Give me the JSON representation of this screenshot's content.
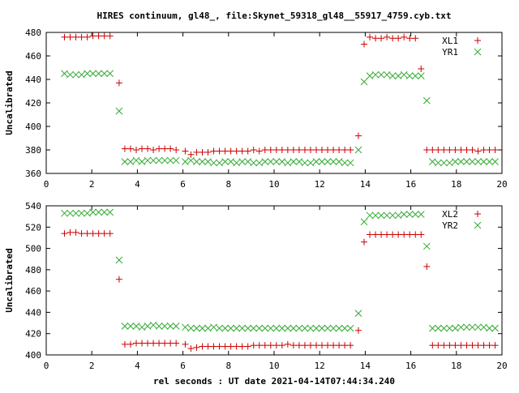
{
  "title": "HIRES continuum, gl48_, file:Skynet_59318_gl48__55917_4759.cyb.txt",
  "xlabel": "rel seconds : UT date 2021-04-14T07:44:34.240",
  "colors": {
    "xl": "#cc0000",
    "yr": "#33aa33",
    "axis": "#000000",
    "grid": "#808080"
  },
  "chart_data": [
    {
      "type": "scatter",
      "ylabel": "Uncalibrated",
      "xlim": [
        0,
        20
      ],
      "ylim": [
        360,
        480
      ],
      "xticks": [
        0,
        2,
        4,
        6,
        8,
        10,
        12,
        14,
        16,
        18,
        20
      ],
      "yticks": [
        360,
        380,
        400,
        420,
        440,
        460,
        480
      ],
      "legend_position": "top-right",
      "series": [
        {
          "name": "XL1",
          "marker": "plus",
          "color": "#cc0000",
          "x": [
            0.8,
            1.05,
            1.3,
            1.55,
            1.8,
            2.05,
            2.3,
            2.55,
            2.8,
            3.2,
            3.45,
            3.7,
            3.95,
            4.2,
            4.45,
            4.7,
            4.95,
            5.2,
            5.45,
            5.7,
            6.1,
            6.35,
            6.6,
            6.85,
            7.1,
            7.35,
            7.6,
            7.85,
            8.1,
            8.35,
            8.6,
            8.85,
            9.1,
            9.35,
            9.6,
            9.85,
            10.1,
            10.35,
            10.6,
            10.85,
            11.1,
            11.35,
            11.6,
            11.85,
            12.1,
            12.35,
            12.6,
            12.85,
            13.1,
            13.35,
            13.7,
            13.95,
            14.2,
            14.45,
            14.7,
            14.95,
            15.2,
            15.45,
            15.7,
            15.95,
            16.2,
            16.45,
            16.7,
            16.95,
            17.2,
            17.45,
            17.7,
            17.95,
            18.2,
            18.45,
            18.7,
            18.95,
            19.2,
            19.45,
            19.7
          ],
          "y": [
            476,
            476,
            476,
            476,
            476,
            477,
            477,
            477,
            477,
            437,
            381,
            381,
            380,
            381,
            381,
            380,
            381,
            381,
            381,
            380,
            379,
            376,
            378,
            378,
            378,
            379,
            379,
            379,
            379,
            379,
            379,
            379,
            380,
            379,
            380,
            380,
            380,
            380,
            380,
            380,
            380,
            380,
            380,
            380,
            380,
            380,
            380,
            380,
            380,
            380,
            392,
            470,
            476,
            475,
            475,
            476,
            475,
            475,
            476,
            475,
            475,
            449,
            380,
            380,
            380,
            380,
            380,
            380,
            380,
            380,
            380,
            379,
            380,
            380,
            380
          ]
        },
        {
          "name": "YR1",
          "marker": "cross",
          "color": "#33aa33",
          "x": [
            0.8,
            1.05,
            1.3,
            1.55,
            1.8,
            2.05,
            2.3,
            2.55,
            2.8,
            3.2,
            3.45,
            3.7,
            3.95,
            4.2,
            4.45,
            4.7,
            4.95,
            5.2,
            5.45,
            5.7,
            6.1,
            6.35,
            6.6,
            6.85,
            7.1,
            7.35,
            7.6,
            7.85,
            8.1,
            8.35,
            8.6,
            8.85,
            9.1,
            9.35,
            9.6,
            9.85,
            10.1,
            10.35,
            10.6,
            10.85,
            11.1,
            11.35,
            11.6,
            11.85,
            12.1,
            12.35,
            12.6,
            12.85,
            13.1,
            13.35,
            13.7,
            13.95,
            14.2,
            14.45,
            14.7,
            14.95,
            15.2,
            15.45,
            15.7,
            15.95,
            16.2,
            16.45,
            16.7,
            16.95,
            17.2,
            17.45,
            17.7,
            17.95,
            18.2,
            18.45,
            18.7,
            18.95,
            19.2,
            19.45,
            19.7
          ],
          "y": [
            445,
            444,
            444,
            444,
            445,
            445,
            445,
            445,
            445,
            413,
            370,
            370,
            371,
            370,
            371,
            371,
            371,
            371,
            371,
            371,
            370,
            371,
            370,
            370,
            370,
            369,
            369,
            370,
            370,
            369,
            370,
            370,
            369,
            369,
            370,
            370,
            370,
            370,
            369,
            370,
            370,
            369,
            369,
            370,
            370,
            370,
            370,
            370,
            369,
            369,
            380,
            438,
            443,
            444,
            444,
            444,
            443,
            443,
            444,
            443,
            443,
            443,
            422,
            370,
            369,
            369,
            369,
            370,
            370,
            370,
            370,
            370,
            370,
            370,
            370
          ]
        }
      ]
    },
    {
      "type": "scatter",
      "ylabel": "Uncalibrated",
      "xlim": [
        0,
        20
      ],
      "ylim": [
        400,
        540
      ],
      "xticks": [
        0,
        2,
        4,
        6,
        8,
        10,
        12,
        14,
        16,
        18,
        20
      ],
      "yticks": [
        400,
        420,
        440,
        460,
        480,
        500,
        520,
        540
      ],
      "legend_position": "top-right",
      "series": [
        {
          "name": "XL2",
          "marker": "plus",
          "color": "#cc0000",
          "x": [
            0.8,
            1.05,
            1.3,
            1.55,
            1.8,
            2.05,
            2.3,
            2.55,
            2.8,
            3.2,
            3.45,
            3.7,
            3.95,
            4.2,
            4.45,
            4.7,
            4.95,
            5.2,
            5.45,
            5.7,
            6.1,
            6.35,
            6.6,
            6.85,
            7.1,
            7.35,
            7.6,
            7.85,
            8.1,
            8.35,
            8.6,
            8.85,
            9.1,
            9.35,
            9.6,
            9.85,
            10.1,
            10.35,
            10.6,
            10.85,
            11.1,
            11.35,
            11.6,
            11.85,
            12.1,
            12.35,
            12.6,
            12.85,
            13.1,
            13.35,
            13.7,
            13.95,
            14.2,
            14.45,
            14.7,
            14.95,
            15.2,
            15.45,
            15.7,
            15.95,
            16.2,
            16.45,
            16.7,
            16.95,
            17.2,
            17.45,
            17.7,
            17.95,
            18.2,
            18.45,
            18.7,
            18.95,
            19.2,
            19.45,
            19.7
          ],
          "y": [
            514,
            515,
            515,
            514,
            514,
            514,
            514,
            514,
            514,
            471,
            410,
            410,
            411,
            411,
            411,
            411,
            411,
            411,
            411,
            411,
            410,
            406,
            407,
            408,
            408,
            408,
            408,
            408,
            408,
            408,
            408,
            408,
            409,
            409,
            409,
            409,
            409,
            409,
            410,
            409,
            409,
            409,
            409,
            409,
            409,
            409,
            409,
            409,
            409,
            409,
            423,
            506,
            513,
            513,
            513,
            513,
            513,
            513,
            513,
            513,
            513,
            513,
            483,
            409,
            409,
            409,
            409,
            409,
            409,
            409,
            409,
            409,
            409,
            409,
            409
          ]
        },
        {
          "name": "YR2",
          "marker": "cross",
          "color": "#33aa33",
          "x": [
            0.8,
            1.05,
            1.3,
            1.55,
            1.8,
            2.05,
            2.3,
            2.55,
            2.8,
            3.2,
            3.45,
            3.7,
            3.95,
            4.2,
            4.45,
            4.7,
            4.95,
            5.2,
            5.45,
            5.7,
            6.1,
            6.35,
            6.6,
            6.85,
            7.1,
            7.35,
            7.6,
            7.85,
            8.1,
            8.35,
            8.6,
            8.85,
            9.1,
            9.35,
            9.6,
            9.85,
            10.1,
            10.35,
            10.6,
            10.85,
            11.1,
            11.35,
            11.6,
            11.85,
            12.1,
            12.35,
            12.6,
            12.85,
            13.1,
            13.35,
            13.7,
            13.95,
            14.2,
            14.45,
            14.7,
            14.95,
            15.2,
            15.45,
            15.7,
            15.95,
            16.2,
            16.45,
            16.7,
            16.95,
            17.2,
            17.45,
            17.7,
            17.95,
            18.2,
            18.45,
            18.7,
            18.95,
            19.2,
            19.45,
            19.7
          ],
          "y": [
            533,
            533,
            533,
            533,
            533,
            534,
            534,
            534,
            534,
            489,
            427,
            427,
            427,
            426,
            427,
            428,
            427,
            427,
            427,
            427,
            426,
            425,
            425,
            425,
            425,
            426,
            425,
            425,
            425,
            425,
            425,
            425,
            425,
            425,
            425,
            425,
            425,
            425,
            425,
            425,
            425,
            425,
            425,
            425,
            425,
            425,
            425,
            425,
            425,
            425,
            439,
            525,
            531,
            531,
            531,
            531,
            531,
            531,
            532,
            532,
            532,
            532,
            502,
            425,
            425,
            425,
            425,
            425,
            426,
            426,
            426,
            426,
            426,
            425,
            425
          ]
        }
      ]
    }
  ]
}
